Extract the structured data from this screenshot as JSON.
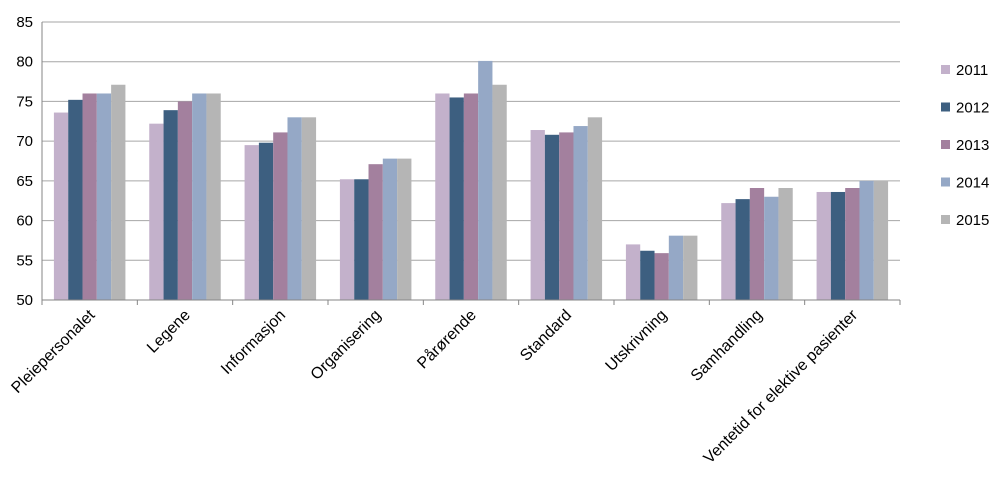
{
  "chart_data": {
    "type": "bar",
    "title": "",
    "xlabel": "",
    "ylabel": "",
    "ylim": [
      50,
      85
    ],
    "yticks": [
      50,
      55,
      60,
      65,
      70,
      75,
      80,
      85
    ],
    "grid": true,
    "legend_position": "right",
    "categories": [
      "Pleiepersonalet",
      "Legene",
      "Informasjon",
      "Organisering",
      "Pårørende",
      "Standard",
      "Utskrivning",
      "Samhandling",
      "Ventetid for elektive pasienter"
    ],
    "series": [
      {
        "name": "2011",
        "color": "#c3b1cb",
        "values": [
          73.6,
          72.2,
          69.5,
          65.2,
          76.0,
          71.4,
          57.0,
          62.2,
          63.6
        ]
      },
      {
        "name": "2012",
        "color": "#3d5f80",
        "values": [
          75.2,
          73.9,
          69.8,
          65.2,
          75.5,
          70.8,
          56.2,
          62.7,
          63.6
        ]
      },
      {
        "name": "2013",
        "color": "#a3809e",
        "values": [
          76.0,
          75.0,
          71.1,
          67.1,
          76.0,
          71.1,
          55.9,
          64.1,
          64.1
        ]
      },
      {
        "name": "2014",
        "color": "#95a8c6",
        "values": [
          76.0,
          76.0,
          73.0,
          67.8,
          80.1,
          71.9,
          58.1,
          63.0,
          65.0
        ]
      },
      {
        "name": "2015",
        "color": "#b5b5b5",
        "values": [
          77.1,
          76.0,
          73.0,
          67.8,
          77.1,
          73.0,
          58.1,
          64.1,
          65.0
        ]
      }
    ]
  }
}
